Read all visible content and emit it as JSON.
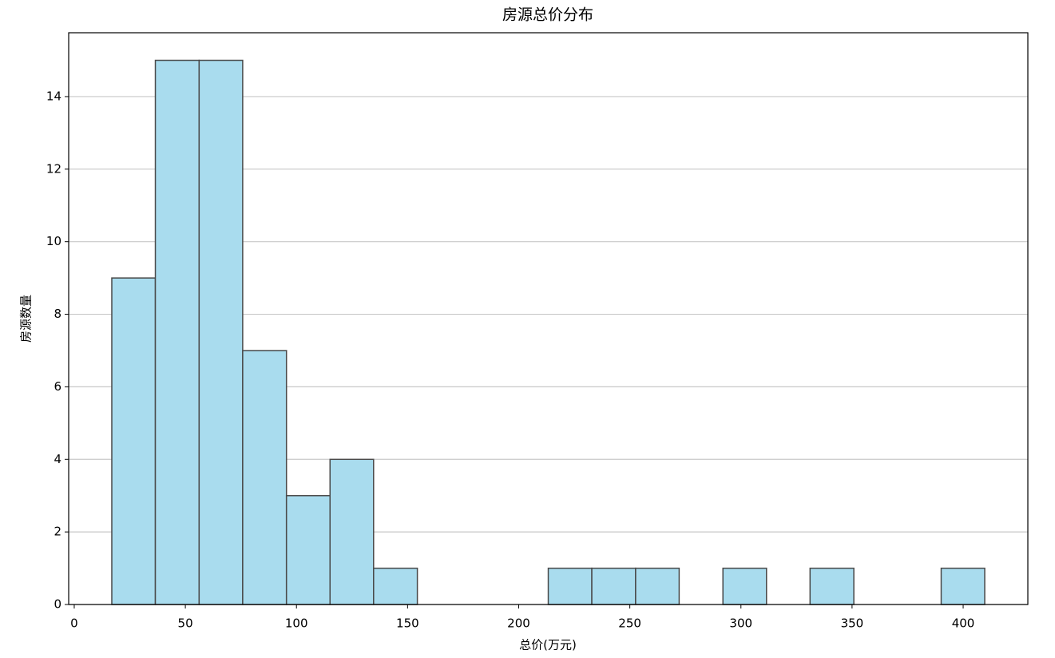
{
  "chart_data": {
    "type": "histogram",
    "title": "房源总价分布",
    "xlabel": "总价(万元)",
    "ylabel": "房源数量",
    "bins": [
      16.9,
      36.5,
      56.2,
      75.8,
      95.5,
      115.1,
      134.7,
      154.4,
      174.0,
      193.7,
      213.3,
      232.9,
      252.6,
      272.2,
      291.9,
      311.5,
      331.1,
      350.8,
      370.4,
      390.1,
      409.7
    ],
    "values": [
      9,
      15,
      15,
      7,
      3,
      4,
      1,
      0,
      0,
      0,
      1,
      1,
      1,
      0,
      1,
      0,
      1,
      0,
      0,
      1
    ],
    "color": "#a9dcee",
    "edgecolor": "#4a4a4a",
    "xlim": [
      -2.5,
      429.1
    ],
    "xticks": [
      0,
      50,
      100,
      150,
      200,
      250,
      300,
      350,
      400
    ],
    "ylim": [
      0,
      15.76
    ],
    "yticks": [
      0,
      2,
      4,
      6,
      8,
      10,
      12,
      14
    ],
    "grid": true
  }
}
